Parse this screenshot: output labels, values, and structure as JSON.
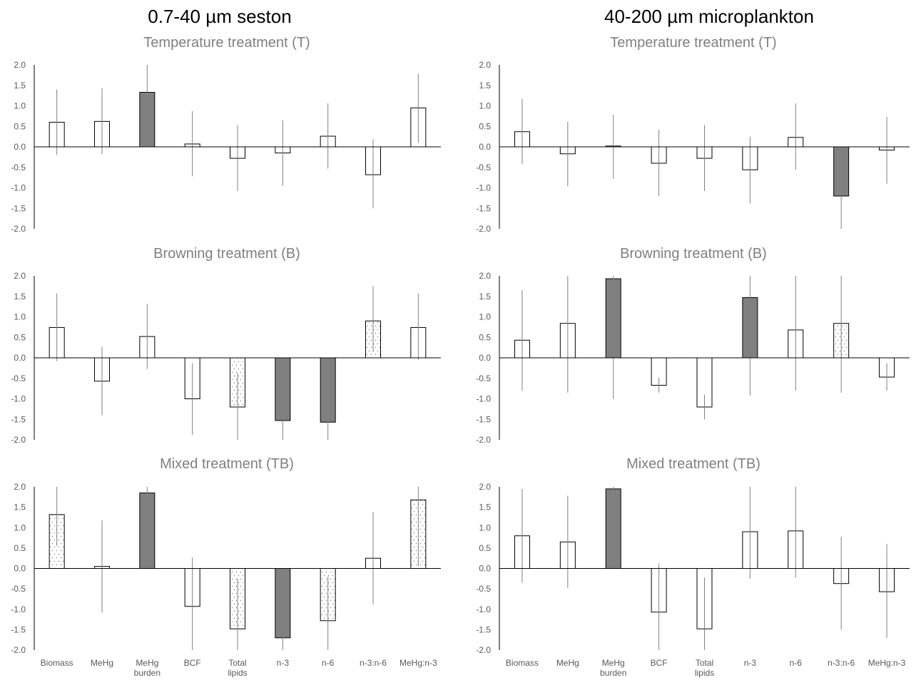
{
  "columns": [
    {
      "title": "0.7-40 µm seston",
      "panels": [
        {
          "chart_data": {
            "type": "bar",
            "title": "Temperature treatment (T)",
            "categories": [
              "Biomass",
              "MeHg",
              "MeHg burden",
              "BCF",
              "Total lipids",
              "n-3",
              "n-6",
              "n-3:n-6",
              "MeHg:n-3"
            ],
            "values": [
              0.6,
              0.62,
              1.33,
              0.07,
              -0.28,
              -0.15,
              0.26,
              -0.68,
              0.95
            ],
            "error_low": [
              -0.2,
              -0.18,
              0.45,
              -0.72,
              -1.08,
              -0.95,
              -0.53,
              -1.5,
              0.1
            ],
            "error_high": [
              1.4,
              1.43,
              2.0,
              0.87,
              0.53,
              0.65,
              1.06,
              0.18,
              1.78
            ],
            "fill": [
              "open",
              "open",
              "solid",
              "open",
              "open",
              "open",
              "open",
              "open",
              "open"
            ],
            "ylim": [
              -2.0,
              2.0
            ],
            "yticks": [
              "2.0",
              "1.5",
              "1.0",
              "0.5",
              "0.0",
              "-0.5",
              "-1.0",
              "-1.5",
              "-2.0"
            ],
            "grid": false
          }
        },
        {
          "chart_data": {
            "type": "bar",
            "title": "Browning treatment (B)",
            "categories": [
              "Biomass",
              "MeHg",
              "MeHg burden",
              "BCF",
              "Total lipids",
              "n-3",
              "n-6",
              "n-3:n-6",
              "MeHg:n-3"
            ],
            "values": [
              0.74,
              -0.57,
              0.52,
              -1.0,
              -1.2,
              -1.53,
              -1.57,
              0.9,
              0.74
            ],
            "error_low": [
              -0.08,
              -1.4,
              -0.27,
              -1.88,
              -2.0,
              -2.0,
              -2.0,
              0.15,
              -0.05
            ],
            "error_high": [
              1.57,
              0.27,
              1.32,
              -0.13,
              -0.37,
              -0.6,
              -0.65,
              1.75,
              1.57
            ],
            "fill": [
              "open",
              "open",
              "open",
              "open",
              "dotted",
              "solid",
              "solid",
              "dotted",
              "open"
            ],
            "ylim": [
              -2.0,
              2.0
            ],
            "yticks": [
              "2.0",
              "1.5",
              "1.0",
              "0.5",
              "0.0",
              "-0.5",
              "-1.0",
              "-1.5",
              "-2.0"
            ],
            "grid": false
          }
        },
        {
          "chart_data": {
            "type": "bar",
            "title": "Mixed treatment (TB)",
            "categories": [
              "Biomass",
              "MeHg",
              "MeHg burden",
              "BCF",
              "Total lipids",
              "n-3",
              "n-6",
              "n-3:n-6",
              "MeHg:n-3"
            ],
            "values": [
              1.32,
              0.05,
              1.85,
              -0.93,
              -1.48,
              -1.7,
              -1.28,
              0.25,
              1.68
            ],
            "error_low": [
              0.55,
              -1.08,
              0.6,
              -2.0,
              -2.0,
              -2.0,
              -2.0,
              -0.88,
              0.05
            ],
            "error_high": [
              2.0,
              1.18,
              2.0,
              0.27,
              -0.25,
              -0.42,
              -0.2,
              1.38,
              2.0
            ],
            "fill": [
              "dotted",
              "open",
              "solid",
              "open",
              "dotted",
              "solid",
              "dotted",
              "open",
              "dotted"
            ],
            "ylim": [
              -2.0,
              2.0
            ],
            "yticks": [
              "2.0",
              "1.5",
              "1.0",
              "0.5",
              "0.0",
              "-0.5",
              "-1.0",
              "-1.5",
              "-2.0"
            ],
            "grid": false
          }
        }
      ]
    },
    {
      "title": "40-200 µm microplankton",
      "panels": [
        {
          "chart_data": {
            "type": "bar",
            "title": "Temperature treatment (T)",
            "categories": [
              "Biomass",
              "MeHg",
              "MeHg burden",
              "BCF",
              "Total lipids",
              "n-3",
              "n-6",
              "n-3:n-6",
              "MeHg:n-3"
            ],
            "values": [
              0.37,
              -0.17,
              0.02,
              -0.4,
              -0.28,
              -0.56,
              0.23,
              -1.2,
              -0.08
            ],
            "error_low": [
              -0.42,
              -0.96,
              -0.78,
              -1.2,
              -1.08,
              -1.38,
              -0.56,
              -2.0,
              -0.9
            ],
            "error_high": [
              1.17,
              0.62,
              0.78,
              0.42,
              0.53,
              0.25,
              1.06,
              -0.4,
              0.73
            ],
            "fill": [
              "open",
              "open",
              "open",
              "open",
              "open",
              "open",
              "open",
              "solid",
              "open"
            ],
            "ylim": [
              -2.0,
              2.0
            ],
            "yticks": [
              "2.0",
              "1.5",
              "1.0",
              "0.5",
              "0.0",
              "-0.5",
              "-1.0",
              "-1.5",
              "-2.0"
            ],
            "grid": false
          }
        },
        {
          "chart_data": {
            "type": "bar",
            "title": "Browning treatment (B)",
            "categories": [
              "Biomass",
              "MeHg",
              "MeHg burden",
              "BCF",
              "Total lipids",
              "n-3",
              "n-6",
              "n-3:n-6",
              "MeHg:n-3"
            ],
            "values": [
              0.43,
              0.84,
              1.93,
              -0.67,
              -1.2,
              1.47,
              0.68,
              0.84,
              -0.47
            ],
            "error_low": [
              -0.8,
              -0.85,
              -1.0,
              -0.85,
              -1.5,
              -0.92,
              -0.8,
              -0.85,
              -0.8
            ],
            "error_high": [
              1.65,
              2.0,
              2.0,
              -0.48,
              -0.9,
              2.0,
              2.0,
              2.0,
              -0.13
            ],
            "fill": [
              "open",
              "open",
              "solid",
              "open",
              "open",
              "solid",
              "open",
              "dotted",
              "open"
            ],
            "ylim": [
              -2.0,
              2.0
            ],
            "yticks": [
              "2.0",
              "1.5",
              "1.0",
              "0.5",
              "0.0",
              "-0.5",
              "-1.0",
              "-1.5",
              "-2.0"
            ],
            "grid": false
          }
        },
        {
          "chart_data": {
            "type": "bar",
            "title": "Mixed treatment (TB)",
            "categories": [
              "Biomass",
              "MeHg",
              "MeHg burden",
              "BCF",
              "Total lipids",
              "n-3",
              "n-6",
              "n-3:n-6",
              "MeHg:n-3"
            ],
            "values": [
              0.8,
              0.65,
              1.95,
              -1.07,
              -1.48,
              0.9,
              0.92,
              -0.37,
              -0.57
            ],
            "error_low": [
              -0.35,
              -0.48,
              0.7,
              -2.0,
              -2.0,
              -0.25,
              -0.22,
              -1.5,
              -1.7
            ],
            "error_high": [
              1.95,
              1.78,
              2.0,
              0.12,
              -0.22,
              2.0,
              2.0,
              0.78,
              0.6
            ],
            "fill": [
              "open",
              "open",
              "solid",
              "open",
              "open",
              "open",
              "open",
              "open",
              "open"
            ],
            "ylim": [
              -2.0,
              2.0
            ],
            "yticks": [
              "2.0",
              "1.5",
              "1.0",
              "0.5",
              "0.0",
              "-0.5",
              "-1.0",
              "-1.5",
              "-2.0"
            ],
            "grid": false
          }
        }
      ]
    }
  ],
  "category_labels": [
    [
      "Biomass"
    ],
    [
      "MeHg"
    ],
    [
      "MeHg",
      "burden"
    ],
    [
      "BCF"
    ],
    [
      "Total",
      "lipids"
    ],
    [
      "n-3"
    ],
    [
      "n-6"
    ],
    [
      "n-3:n-6"
    ],
    [
      "MeHg:n-3"
    ]
  ],
  "colors": {
    "solid_fill": "#808080",
    "open_fill": "#ffffff",
    "dot_color": "#808080",
    "bar_stroke": "#000000",
    "axis": "#000000",
    "error_bar": "#808080",
    "panel_title": "#808080",
    "tick_label": "#595959"
  }
}
